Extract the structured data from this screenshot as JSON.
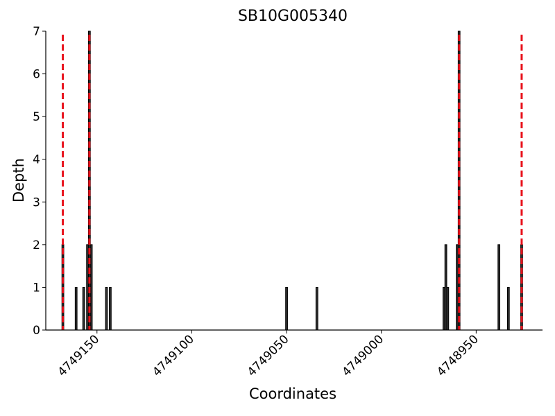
{
  "chart_data": {
    "type": "bar",
    "title": "SB10G005340",
    "xlabel": "Coordinates",
    "ylabel": "Depth",
    "x": [
      4749168,
      4749161,
      4749157,
      4749155,
      4749154,
      4749153,
      4749145,
      4749143,
      4749050,
      4749034,
      4748967,
      4748966,
      4748965,
      4748960,
      4748959,
      4748938,
      4748933,
      4748926
    ],
    "values": [
      2,
      1,
      1,
      2,
      7,
      2,
      1,
      1,
      1,
      1,
      1,
      2,
      1,
      2,
      7,
      2,
      1,
      2
    ],
    "color": "#333333",
    "xlim": [
      4749177,
      4748915
    ],
    "xticks": [
      4749150,
      4749100,
      4749050,
      4749000,
      4748950
    ],
    "ylim": [
      0,
      7
    ],
    "yticks": [
      0,
      1,
      2,
      3,
      4,
      5,
      6,
      7
    ],
    "vlines": {
      "x": [
        4749168,
        4749154,
        4748959,
        4748926
      ],
      "color": "#e8101a"
    }
  }
}
